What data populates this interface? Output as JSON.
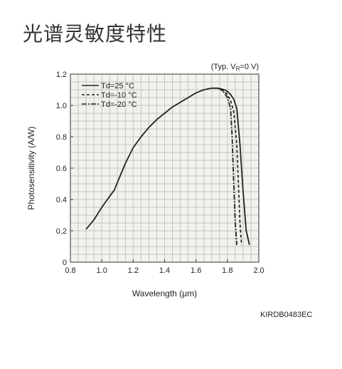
{
  "title": "光谱灵敏度特性",
  "chart_data": {
    "type": "line",
    "condition_prefix": "(Typ. V",
    "condition_sub": "R",
    "condition_suffix": "=0 V)",
    "xlabel": "Wavelength (μm)",
    "ylabel": "Photosensitivity (A/W)",
    "xlim": [
      0.8,
      2.0
    ],
    "ylim": [
      0,
      1.2
    ],
    "x_ticks": [
      "0.8",
      "1.0",
      "1.2",
      "1.4",
      "1.6",
      "1.8",
      "2.0"
    ],
    "y_ticks": [
      "0",
      "0.2",
      "0.4",
      "0.6",
      "0.8",
      "1.0",
      "1.2"
    ],
    "grid": true,
    "legend_position": "top-left",
    "series": [
      {
        "name": "Td=25 °C",
        "style": "solid",
        "x": [
          0.9,
          0.95,
          1.0,
          1.05,
          1.08,
          1.1,
          1.15,
          1.2,
          1.25,
          1.3,
          1.35,
          1.4,
          1.45,
          1.5,
          1.55,
          1.6,
          1.65,
          1.7,
          1.74,
          1.78,
          1.8,
          1.82,
          1.84,
          1.86,
          1.88,
          1.9,
          1.92,
          1.94
        ],
        "y": [
          0.21,
          0.27,
          0.35,
          0.42,
          0.46,
          0.51,
          0.63,
          0.73,
          0.8,
          0.86,
          0.91,
          0.95,
          0.99,
          1.02,
          1.05,
          1.08,
          1.1,
          1.11,
          1.11,
          1.1,
          1.09,
          1.07,
          1.04,
          0.98,
          0.75,
          0.45,
          0.2,
          0.11
        ]
      },
      {
        "name": "Td=-10 °C",
        "style": "dashed",
        "x": [
          1.76,
          1.78,
          1.8,
          1.82,
          1.84,
          1.86,
          1.87,
          1.88,
          1.89
        ],
        "y": [
          1.1,
          1.09,
          1.07,
          1.03,
          0.96,
          0.75,
          0.5,
          0.25,
          0.11
        ]
      },
      {
        "name": "Td=-20 °C",
        "style": "dashdot",
        "x": [
          1.74,
          1.76,
          1.78,
          1.8,
          1.82,
          1.83,
          1.84,
          1.85,
          1.86
        ],
        "y": [
          1.11,
          1.1,
          1.08,
          1.05,
          0.98,
          0.8,
          0.5,
          0.25,
          0.11
        ]
      }
    ]
  },
  "code": "KIRDB0483EC",
  "colors": {
    "line": "#222222",
    "grid": "#c4c4c4",
    "axis": "#333333",
    "plot_bg": "#f2f1ec"
  }
}
